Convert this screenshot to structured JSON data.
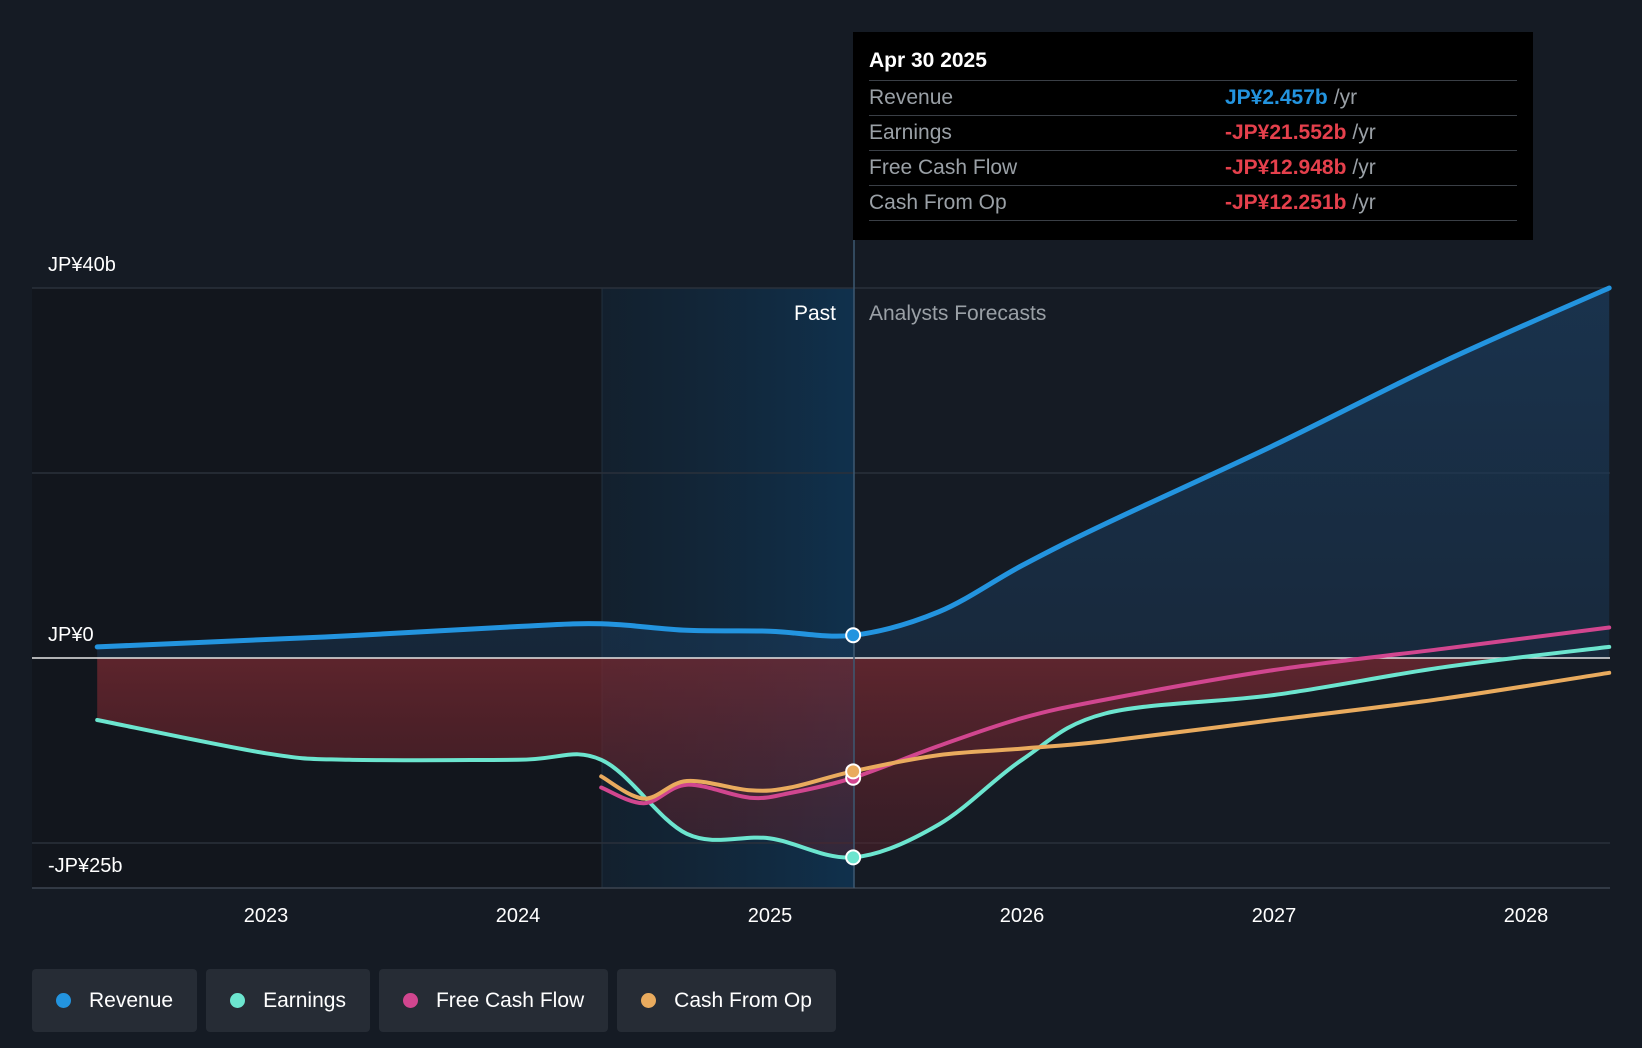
{
  "chart_data": {
    "type": "line",
    "y_axis": {
      "labels": [
        "JP¥40b",
        "JP¥0",
        "-JP¥25b"
      ],
      "range": [
        -25,
        40
      ],
      "unit": "JP¥ billions"
    },
    "x_axis": {
      "ticks": [
        "2023",
        "2024",
        "2025",
        "2026",
        "2027",
        "2028"
      ]
    },
    "past_label": "Past",
    "forecast_label": "Analysts Forecasts",
    "divider_date": 2025.33,
    "series": [
      {
        "name": "Revenue",
        "color": "#2394df",
        "points": [
          [
            2022.33,
            1.2
          ],
          [
            2023.0,
            2.0
          ],
          [
            2023.33,
            2.4
          ],
          [
            2024.0,
            3.4
          ],
          [
            2024.33,
            3.7
          ],
          [
            2024.67,
            3.0
          ],
          [
            2025.0,
            2.9
          ],
          [
            2025.33,
            2.457
          ],
          [
            2025.67,
            5.0
          ],
          [
            2026.0,
            10.0
          ],
          [
            2026.33,
            14.5
          ],
          [
            2027.0,
            23.0
          ],
          [
            2027.67,
            32.0
          ],
          [
            2028.33,
            40.0
          ]
        ]
      },
      {
        "name": "Earnings",
        "color": "#6ce5cf",
        "points": [
          [
            2022.33,
            -6.7
          ],
          [
            2023.0,
            -10.3
          ],
          [
            2023.33,
            -11.0
          ],
          [
            2024.0,
            -11.0
          ],
          [
            2024.33,
            -11.0
          ],
          [
            2024.67,
            -19.0
          ],
          [
            2025.0,
            -19.5
          ],
          [
            2025.33,
            -21.552
          ],
          [
            2025.67,
            -18.0
          ],
          [
            2026.0,
            -11.0
          ],
          [
            2026.33,
            -6.0
          ],
          [
            2027.0,
            -4.0
          ],
          [
            2027.67,
            -1.0
          ],
          [
            2028.33,
            1.2
          ]
        ]
      },
      {
        "name": "Free Cash Flow",
        "color": "#d1468f",
        "points": [
          [
            2024.33,
            -14.0
          ],
          [
            2024.5,
            -15.7
          ],
          [
            2024.67,
            -13.7
          ],
          [
            2024.92,
            -15.1
          ],
          [
            2025.08,
            -14.6
          ],
          [
            2025.33,
            -12.948
          ],
          [
            2025.67,
            -9.5
          ],
          [
            2026.0,
            -6.5
          ],
          [
            2026.33,
            -4.5
          ],
          [
            2027.0,
            -1.3
          ],
          [
            2027.67,
            1.0
          ],
          [
            2028.33,
            3.3
          ]
        ]
      },
      {
        "name": "Cash From Op",
        "color": "#e9ab5e",
        "points": [
          [
            2024.33,
            -12.8
          ],
          [
            2024.5,
            -15.2
          ],
          [
            2024.67,
            -13.3
          ],
          [
            2024.92,
            -14.3
          ],
          [
            2025.08,
            -14.0
          ],
          [
            2025.33,
            -12.251
          ],
          [
            2025.67,
            -10.5
          ],
          [
            2026.0,
            -9.8
          ],
          [
            2026.33,
            -9.0
          ],
          [
            2027.0,
            -6.7
          ],
          [
            2027.67,
            -4.4
          ],
          [
            2028.33,
            -1.6
          ]
        ]
      }
    ]
  },
  "tooltip": {
    "date": "Apr 30 2025",
    "rows": [
      {
        "label": "Revenue",
        "value": "JP¥2.457b",
        "unit": "/yr",
        "color": "#2394df"
      },
      {
        "label": "Earnings",
        "value": "-JP¥21.552b",
        "unit": "/yr",
        "color": "#e5404c"
      },
      {
        "label": "Free Cash Flow",
        "value": "-JP¥12.948b",
        "unit": "/yr",
        "color": "#e5404c"
      },
      {
        "label": "Cash From Op",
        "value": "-JP¥12.251b",
        "unit": "/yr",
        "color": "#e5404c"
      }
    ]
  },
  "legend": [
    {
      "label": "Revenue",
      "color": "#2394df"
    },
    {
      "label": "Earnings",
      "color": "#6ce5cf"
    },
    {
      "label": "Free Cash Flow",
      "color": "#d1468f"
    },
    {
      "label": "Cash From Op",
      "color": "#e9ab5e"
    }
  ]
}
